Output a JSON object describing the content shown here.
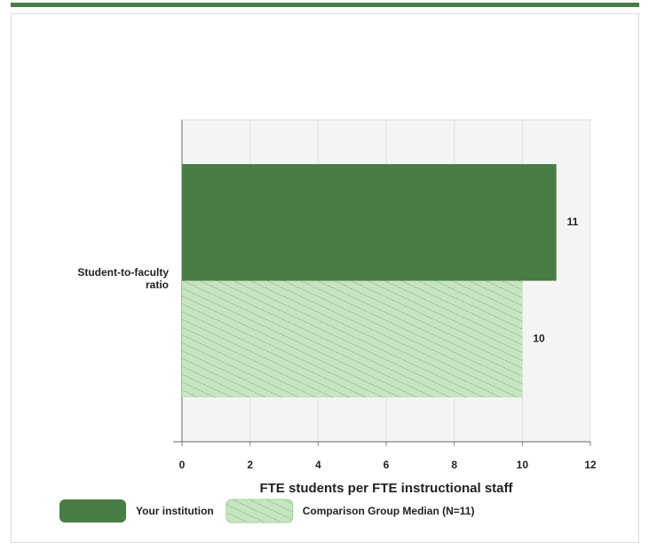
{
  "chart_data": {
    "type": "hbar",
    "categories": [
      "Student-to-faculty ratio"
    ],
    "series": [
      {
        "name": "Your institution",
        "color": "#4a7c45",
        "pattern": "solid",
        "values": [
          11
        ]
      },
      {
        "name": "Comparison Group Median (N=11)",
        "color": "#c7e5c2",
        "pattern": "hatch",
        "values": [
          10
        ]
      }
    ],
    "xlabel": "FTE students per FTE instructional staff",
    "xlim": [
      0,
      12
    ],
    "xticks": [
      0,
      2,
      4,
      6,
      8,
      10,
      12
    ],
    "grid": true,
    "legend": "bottom"
  }
}
